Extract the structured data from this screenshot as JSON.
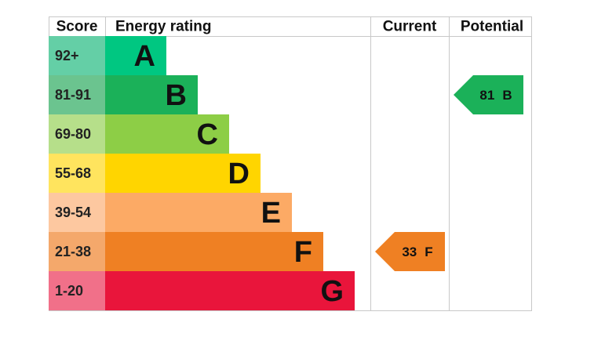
{
  "header": {
    "score": "Score",
    "rating": "Energy rating",
    "current": "Current",
    "potential": "Potential"
  },
  "bands": [
    {
      "score": "92+",
      "letter": "A",
      "color": "#00c781",
      "score_color": "#64cfa6"
    },
    {
      "score": "81-91",
      "letter": "B",
      "color": "#1bb159",
      "score_color": "#6bc48f"
    },
    {
      "score": "69-80",
      "letter": "C",
      "color": "#8dce46",
      "score_color": "#b6df8a"
    },
    {
      "score": "55-68",
      "letter": "D",
      "color": "#ffd500",
      "score_color": "#ffe45e"
    },
    {
      "score": "39-54",
      "letter": "E",
      "color": "#fcaa65",
      "score_color": "#fdc8a0"
    },
    {
      "score": "21-38",
      "letter": "F",
      "color": "#ef8023",
      "score_color": "#f4a86b"
    },
    {
      "score": "1-20",
      "letter": "G",
      "color": "#e9153b",
      "score_color": "#f17089"
    }
  ],
  "current": {
    "value": 33,
    "rating": "F"
  },
  "potential": {
    "value": 81,
    "rating": "B"
  }
}
